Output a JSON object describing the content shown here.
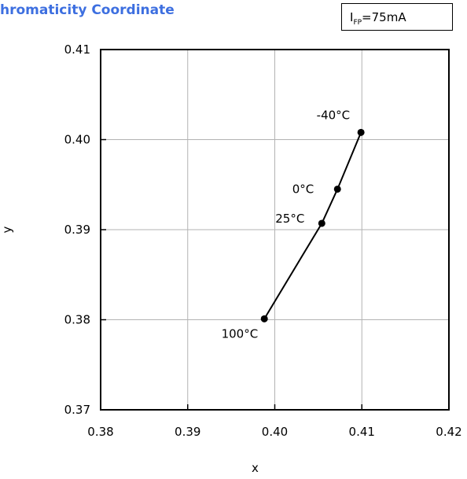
{
  "title": "hromaticity Coordinate",
  "condition": {
    "symbol": "I",
    "subscript": "FP",
    "value": "=75mA"
  },
  "chart_data": {
    "type": "line",
    "xlabel": "x",
    "ylabel": "y",
    "xlim": [
      0.38,
      0.42
    ],
    "ylim": [
      0.37,
      0.41
    ],
    "xticks": [
      "0.38",
      "0.39",
      "0.40",
      "0.41",
      "0.42"
    ],
    "yticks": [
      "0.37",
      "0.38",
      "0.39",
      "0.40",
      "0.41"
    ],
    "grid": true,
    "series": [
      {
        "color": "#000000",
        "points": [
          {
            "x": 0.4099,
            "y": 0.4008,
            "label": "-40°C"
          },
          {
            "x": 0.4072,
            "y": 0.3945,
            "label": "0°C"
          },
          {
            "x": 0.4054,
            "y": 0.3907,
            "label": "25°C"
          },
          {
            "x": 0.3988,
            "y": 0.3801,
            "label": "100°C"
          }
        ]
      }
    ]
  }
}
